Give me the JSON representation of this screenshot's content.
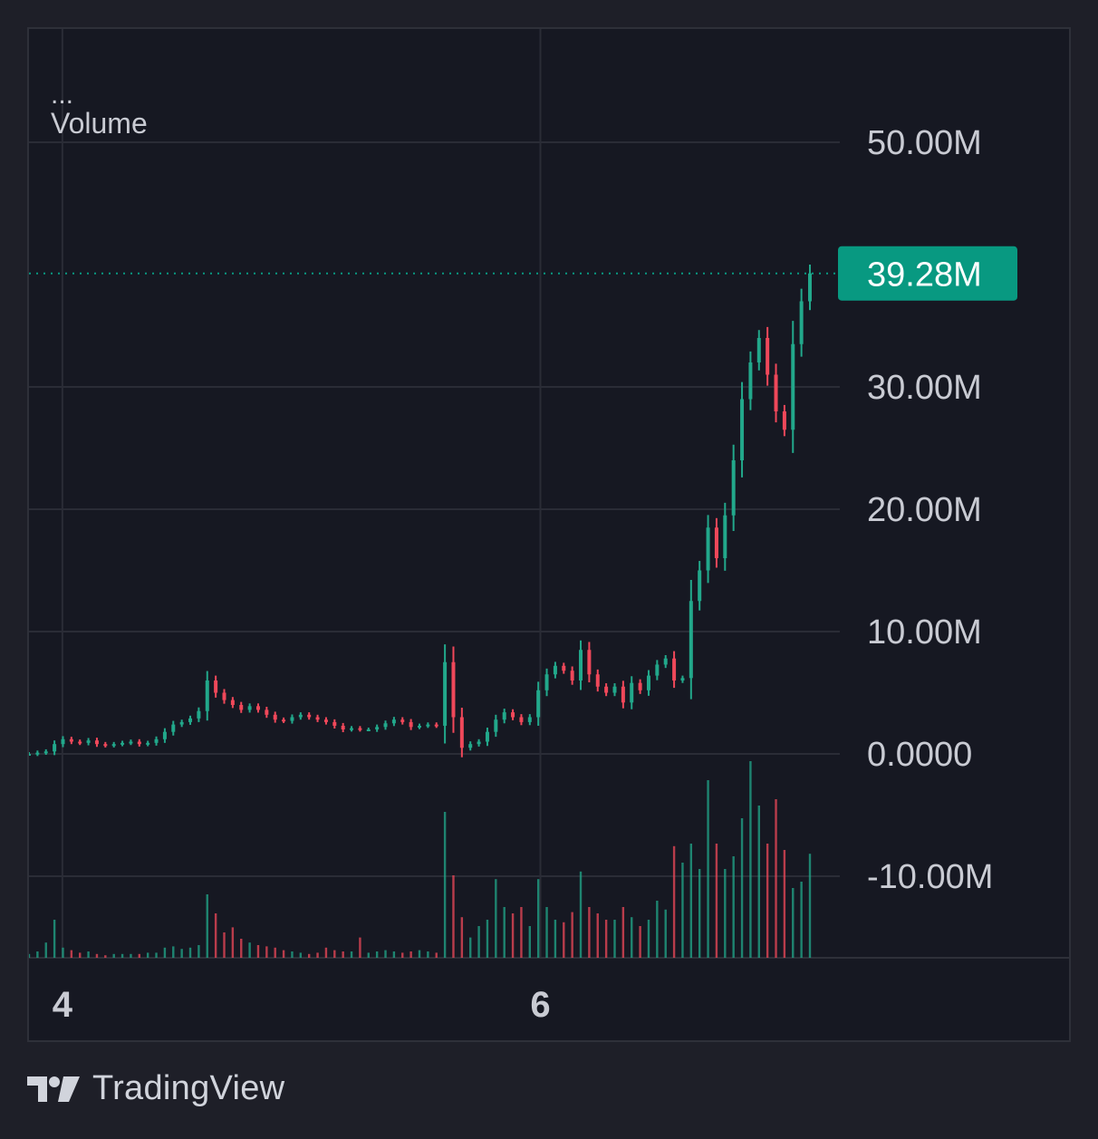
{
  "legend": {
    "more": "...",
    "title": "Volume"
  },
  "brand": {
    "name": "TradingView",
    "logo_icon": "tradingview-logo-icon"
  },
  "colors": {
    "background": "#161822",
    "grid": "#2a2c36",
    "up": "#22a88b",
    "down": "#f0485a",
    "text": "#c9cbd3",
    "last_price_bg": "#089981"
  },
  "chart_data": {
    "type": "candlestick",
    "title": "Volume",
    "ylim": [
      -16,
      55
    ],
    "y_ticks": [
      50,
      30,
      20,
      10,
      0,
      -10
    ],
    "y_tick_labels": [
      "50.00M",
      "30.00M",
      "20.00M",
      "10.00M",
      "0.0000",
      "-10.00M"
    ],
    "x_tick_labels": [
      {
        "label": "4",
        "x": 0.032
      },
      {
        "label": "6",
        "x": 0.49
      }
    ],
    "last_value": 39.28,
    "last_value_label": "39.28M",
    "series_close": [
      0,
      0.1,
      0.2,
      0.8,
      1.2,
      1.0,
      0.9,
      1.1,
      0.8,
      0.7,
      0.8,
      0.9,
      1.0,
      0.8,
      0.9,
      1.2,
      1.8,
      2.4,
      2.6,
      2.9,
      3.5,
      6.0,
      5.0,
      4.4,
      4.0,
      3.6,
      3.9,
      3.6,
      3.2,
      2.8,
      2.7,
      3.0,
      3.2,
      3.0,
      2.8,
      2.6,
      2.3,
      2.0,
      2.1,
      2.0,
      2.0,
      2.2,
      2.5,
      2.8,
      2.6,
      2.2,
      2.3,
      2.4,
      2.3,
      7.5,
      3.0,
      0.5,
      0.8,
      1.0,
      1.8,
      2.8,
      3.4,
      3.0,
      2.6,
      3.0,
      5.2,
      6.5,
      7.2,
      6.8,
      6.0,
      8.5,
      6.5,
      5.5,
      5.0,
      5.5,
      4.2,
      5.8,
      5.2,
      6.4,
      7.3,
      7.8,
      6.0,
      6.2,
      12.5,
      15.0,
      18.5,
      16.0,
      19.5,
      24.0,
      29.0,
      32.0,
      34.0,
      31.0,
      28.0,
      26.5,
      33.5,
      37.0,
      39.28
    ],
    "volume": [
      0.3,
      0.5,
      1.2,
      3.0,
      0.8,
      0.6,
      0.4,
      0.5,
      0.3,
      0.2,
      0.3,
      0.3,
      0.3,
      0.3,
      0.4,
      0.4,
      0.8,
      0.9,
      0.7,
      0.8,
      1.0,
      5.0,
      3.5,
      2.0,
      2.4,
      1.5,
      1.2,
      1.0,
      0.9,
      0.8,
      0.6,
      0.5,
      0.4,
      0.3,
      0.4,
      0.8,
      0.6,
      0.5,
      0.5,
      1.6,
      0.4,
      0.5,
      0.6,
      0.5,
      0.4,
      0.5,
      0.6,
      0.5,
      0.4,
      11.5,
      6.5,
      3.2,
      1.6,
      2.5,
      3.0,
      6.2,
      4.0,
      3.5,
      4.0,
      2.5,
      6.2,
      4.0,
      3.0,
      2.8,
      3.6,
      6.8,
      4.0,
      3.5,
      3.0,
      3.0,
      4.0,
      3.2,
      2.5,
      3.0,
      4.5,
      3.8,
      8.8,
      7.5,
      9.0,
      7.0,
      14.0,
      9.0,
      7.0,
      8.0,
      11.0,
      15.5,
      12.0,
      9.0,
      12.5,
      8.5,
      5.5,
      6.0,
      8.2
    ]
  }
}
